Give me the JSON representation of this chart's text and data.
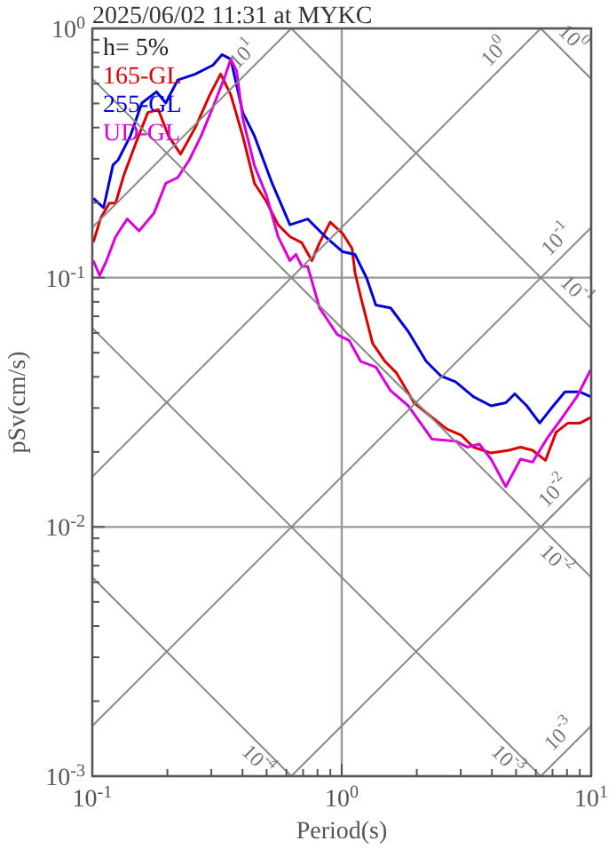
{
  "chart_data": {
    "type": "line",
    "title": "2025/06/02 11:31 at MYKC",
    "xlabel": "Period(s)",
    "ylabel": "pSv(cm/s)",
    "legend_title": "h= 5%",
    "legend": "top left",
    "log": "xy",
    "grid": true,
    "marker": "none",
    "line_style": "solid",
    "xlim": [
      0.1,
      10
    ],
    "ylim": [
      0.001,
      1
    ],
    "xticks": [
      {
        "value": 0.1,
        "label": "10$^{-1}$"
      },
      {
        "value": 0.2,
        "label": null
      },
      {
        "value": 0.3,
        "label": null
      },
      {
        "value": 0.4,
        "label": null
      },
      {
        "value": 0.5,
        "label": null
      },
      {
        "value": 0.6,
        "label": null
      },
      {
        "value": 0.7,
        "label": null
      },
      {
        "value": 0.8,
        "label": null
      },
      {
        "value": 0.9,
        "label": null
      },
      {
        "value": 1,
        "label": "10$^{0}$"
      },
      {
        "value": 2,
        "label": null
      },
      {
        "value": 3,
        "label": null
      },
      {
        "value": 4,
        "label": null
      },
      {
        "value": 5,
        "label": null
      },
      {
        "value": 6,
        "label": null
      },
      {
        "value": 7,
        "label": null
      },
      {
        "value": 8,
        "label": null
      },
      {
        "value": 9,
        "label": null
      },
      {
        "value": 10,
        "label": "10$^{1}$"
      }
    ],
    "yticks": [
      {
        "value": 0.001,
        "label": "10$^{-3}$"
      },
      {
        "value": 0.002,
        "label": null
      },
      {
        "value": 0.003,
        "label": null
      },
      {
        "value": 0.004,
        "label": null
      },
      {
        "value": 0.005,
        "label": null
      },
      {
        "value": 0.006,
        "label": null
      },
      {
        "value": 0.007,
        "label": null
      },
      {
        "value": 0.008,
        "label": null
      },
      {
        "value": 0.009,
        "label": null
      },
      {
        "value": 0.01,
        "label": "10$^{-2}$"
      },
      {
        "value": 0.02,
        "label": null
      },
      {
        "value": 0.03,
        "label": null
      },
      {
        "value": 0.04,
        "label": null
      },
      {
        "value": 0.05,
        "label": null
      },
      {
        "value": 0.06,
        "label": null
      },
      {
        "value": 0.07,
        "label": null
      },
      {
        "value": 0.08,
        "label": null
      },
      {
        "value": 0.09,
        "label": null
      },
      {
        "value": 0.1,
        "label": "10$^{-1}$"
      },
      {
        "value": 0.2,
        "label": null
      },
      {
        "value": 0.3,
        "label": null
      },
      {
        "value": 0.4,
        "label": null
      },
      {
        "value": 0.5,
        "label": null
      },
      {
        "value": 0.6,
        "label": null
      },
      {
        "value": 0.7,
        "label": null
      },
      {
        "value": 0.8,
        "label": null
      },
      {
        "value": 0.9,
        "label": null
      },
      {
        "value": 1,
        "label": "10$^{0}$"
      }
    ],
    "series": [
      {
        "name": "165-GL",
        "color": "#dd0000",
        "x": [
          0.101,
          0.108,
          0.117,
          0.124,
          0.134,
          0.15,
          0.167,
          0.184,
          0.202,
          0.226,
          0.259,
          0.296,
          0.327,
          0.359,
          0.401,
          0.447,
          0.499,
          0.556,
          0.62,
          0.692,
          0.759,
          0.815,
          0.899,
          1.01,
          1.1,
          1.13,
          1.19,
          1.33,
          1.49,
          1.66,
          1.95,
          2.3,
          2.64,
          3.02,
          3.37,
          3.97,
          4.68,
          5.21,
          5.82,
          6.56,
          7.24,
          8.07,
          9.02,
          9.95
        ],
        "values": [
          0.139,
          0.173,
          0.199,
          0.199,
          0.259,
          0.35,
          0.46,
          0.472,
          0.37,
          0.313,
          0.401,
          0.542,
          0.656,
          0.542,
          0.37,
          0.239,
          0.202,
          0.163,
          0.146,
          0.138,
          0.117,
          0.138,
          0.167,
          0.15,
          0.131,
          0.105,
          0.0843,
          0.0545,
          0.0462,
          0.0414,
          0.0315,
          0.0275,
          0.0247,
          0.0233,
          0.0209,
          0.0198,
          0.0203,
          0.0209,
          0.0203,
          0.0185,
          0.024,
          0.0261,
          0.0261,
          0.0275
        ]
      },
      {
        "name": "255-GL",
        "color": "#0000dd",
        "x": [
          0.101,
          0.111,
          0.121,
          0.127,
          0.142,
          0.158,
          0.181,
          0.197,
          0.22,
          0.259,
          0.305,
          0.331,
          0.359,
          0.401,
          0.447,
          0.526,
          0.62,
          0.73,
          0.86,
          1.01,
          1.13,
          1.26,
          1.37,
          1.57,
          1.85,
          2.18,
          2.5,
          2.86,
          3.37,
          3.97,
          4.55,
          4.94,
          5.52,
          6.22,
          7.05,
          7.85,
          9.02,
          9.95
        ],
        "values": [
          0.208,
          0.191,
          0.283,
          0.297,
          0.37,
          0.502,
          0.557,
          0.502,
          0.621,
          0.656,
          0.713,
          0.785,
          0.753,
          0.46,
          0.37,
          0.239,
          0.163,
          0.172,
          0.146,
          0.127,
          0.124,
          0.0993,
          0.0776,
          0.0756,
          0.0607,
          0.0462,
          0.0403,
          0.0382,
          0.0333,
          0.0306,
          0.0315,
          0.0342,
          0.0306,
          0.0261,
          0.0306,
          0.0348,
          0.0348,
          0.0333
        ]
      },
      {
        "name": "UD-GL",
        "color": "#dd00dd",
        "x": [
          0.101,
          0.107,
          0.114,
          0.124,
          0.138,
          0.154,
          0.177,
          0.197,
          0.22,
          0.245,
          0.273,
          0.305,
          0.34,
          0.359,
          0.379,
          0.401,
          0.447,
          0.499,
          0.556,
          0.62,
          0.655,
          0.692,
          0.73,
          0.815,
          0.959,
          1.07,
          1.19,
          1.37,
          1.57,
          1.85,
          2.3,
          2.86,
          3.19,
          3.56,
          3.97,
          4.55,
          5.21,
          5.82,
          6.67,
          7.66,
          8.77,
          9.95
        ],
        "values": [
          0.117,
          0.102,
          0.117,
          0.146,
          0.172,
          0.154,
          0.182,
          0.239,
          0.252,
          0.297,
          0.37,
          0.485,
          0.64,
          0.753,
          0.675,
          0.436,
          0.281,
          0.214,
          0.146,
          0.117,
          0.124,
          0.111,
          0.111,
          0.0756,
          0.0592,
          0.056,
          0.0462,
          0.0438,
          0.0352,
          0.0306,
          0.0225,
          0.0221,
          0.0209,
          0.0215,
          0.0187,
          0.0145,
          0.0187,
          0.0182,
          0.0227,
          0.0275,
          0.0333,
          0.0427
        ]
      },
      {
        "color": "#888888",
        "x": [
          0.1,
          0.628
        ],
        "values": [
          0.159,
          1
        ]
      },
      {
        "color": "#888888",
        "x": [
          0.1,
          6.28
        ],
        "values": [
          0.0159,
          1
        ]
      },
      {
        "color": "#888888",
        "x": [
          0.1,
          10
        ],
        "values": [
          0.00159,
          0.159
        ]
      },
      {
        "color": "#888888",
        "x": [
          0.628,
          10
        ],
        "values": [
          0.001,
          0.0159
        ]
      },
      {
        "color": "#888888",
        "x": [
          6.28,
          10
        ],
        "values": [
          0.001,
          0.00159
        ]
      },
      {
        "color": "#888888",
        "x": [
          6.28,
          10
        ],
        "values": [
          1,
          0.628
        ]
      },
      {
        "color": "#888888",
        "x": [
          0.628,
          10
        ],
        "values": [
          1,
          0.0628
        ]
      },
      {
        "color": "#888888",
        "x": [
          0.1,
          10
        ],
        "values": [
          0.628,
          0.00628
        ]
      },
      {
        "color": "#888888",
        "x": [
          0.1,
          6.28
        ],
        "values": [
          0.0628,
          0.001
        ]
      },
      {
        "color": "#888888",
        "x": [
          0.1,
          0.628
        ],
        "values": [
          0.00628,
          0.001
        ]
      }
    ],
    "annotations": [
      {
        "text": "10$^{1}$",
        "x": 0.445,
        "y": 0.708
      },
      {
        "text": "10$^{0}$",
        "x": 4.55,
        "y": 0.724
      },
      {
        "text": "10$^{0}$",
        "x": 7.6,
        "y": 0.826
      },
      {
        "text": "10$^{-1}$",
        "x": 8.07,
        "y": 0.128
      },
      {
        "text": "10$^{-1}$",
        "x": 7.85,
        "y": 0.08
      },
      {
        "text": "10$^{-2}$",
        "x": 7.85,
        "y": 0.0125
      },
      {
        "text": "10$^{-2}$",
        "x": 7.85,
        "y": 0.008
      },
      {
        "text": "10$^{-3}$",
        "x": 8.3,
        "y": 0.00132
      },
      {
        "text": "10$^{-3}$",
        "x": 5.0,
        "y": 0.00126
      },
      {
        "text": "10$^{-4}$",
        "x": 0.5,
        "y": 0.00126
      }
    ]
  }
}
